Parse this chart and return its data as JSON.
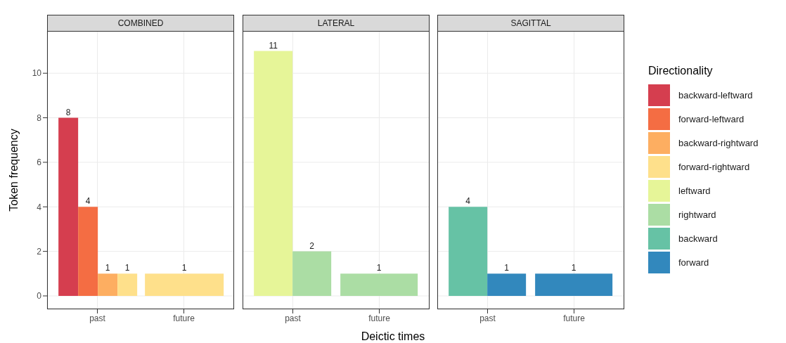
{
  "chart_data": [
    {
      "type": "bar",
      "title": "COMBINED",
      "ylabel": "Token frequency",
      "categories": [
        "past",
        "future"
      ],
      "series": [
        {
          "name": "backward-leftward",
          "color": "#d53e4f",
          "values": [
            8,
            null
          ]
        },
        {
          "name": "forward-leftward",
          "color": "#f46d43",
          "values": [
            4,
            null
          ]
        },
        {
          "name": "backward-rightward",
          "color": "#fdae61",
          "values": [
            1,
            null
          ]
        },
        {
          "name": "forward-rightward",
          "color": "#fee08b",
          "values": [
            1,
            1
          ]
        }
      ],
      "ylim": [
        -0.6,
        11.9
      ],
      "yticks": [
        0,
        2,
        4,
        6,
        8,
        10
      ],
      "grid": true,
      "data_labels": true,
      "legend": "right"
    },
    {
      "type": "bar",
      "title": "LATERAL",
      "xlabel": "Deictic times",
      "categories": [
        "past",
        "future"
      ],
      "series": [
        {
          "name": "leftward",
          "color": "#e6f598",
          "values": [
            11,
            null
          ]
        },
        {
          "name": "rightward",
          "color": "#abdda4",
          "values": [
            2,
            1
          ]
        }
      ],
      "ylim": [
        -0.6,
        11.9
      ],
      "yticks": [
        0,
        2,
        4,
        6,
        8,
        10
      ],
      "grid": true,
      "data_labels": true,
      "tick_labels": "x",
      "legend": "right"
    },
    {
      "type": "bar",
      "title": "SAGITTAL",
      "legend_title": "Directionality",
      "legend": "right",
      "categories": [
        "past",
        "future"
      ],
      "series": [
        {
          "name": "backward",
          "color": "#66c2a5",
          "values": [
            4,
            null
          ]
        },
        {
          "name": "forward",
          "color": "#3288bd",
          "values": [
            1,
            1
          ]
        }
      ],
      "ylim": [
        -0.6,
        11.9
      ],
      "yticks": [
        0,
        2,
        4,
        6,
        8,
        10
      ],
      "grid": true,
      "data_labels": true,
      "tick_labels": "x"
    }
  ]
}
